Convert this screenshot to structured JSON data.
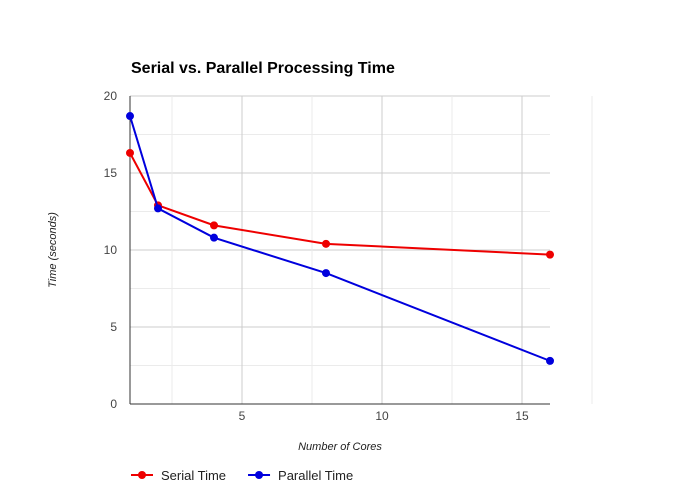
{
  "chart_data": {
    "type": "line",
    "title": "Serial vs. Parallel Processing Time",
    "xlabel": "Number of Cores",
    "ylabel": "Time (seconds)",
    "x": [
      1,
      2,
      4,
      8,
      16
    ],
    "series": [
      {
        "name": "Serial Time",
        "color": "#ee0000",
        "values": [
          16.3,
          12.9,
          11.6,
          10.4,
          9.7
        ]
      },
      {
        "name": "Parallel Time",
        "color": "#0000dd",
        "values": [
          18.7,
          12.7,
          10.8,
          8.5,
          2.8
        ]
      }
    ],
    "xlim": [
      1,
      16
    ],
    "ylim": [
      0,
      20
    ],
    "xticks": [
      5,
      10,
      15
    ],
    "yticks": [
      0,
      5,
      10,
      15,
      20
    ],
    "grid": true,
    "legend": "bottom-left"
  }
}
